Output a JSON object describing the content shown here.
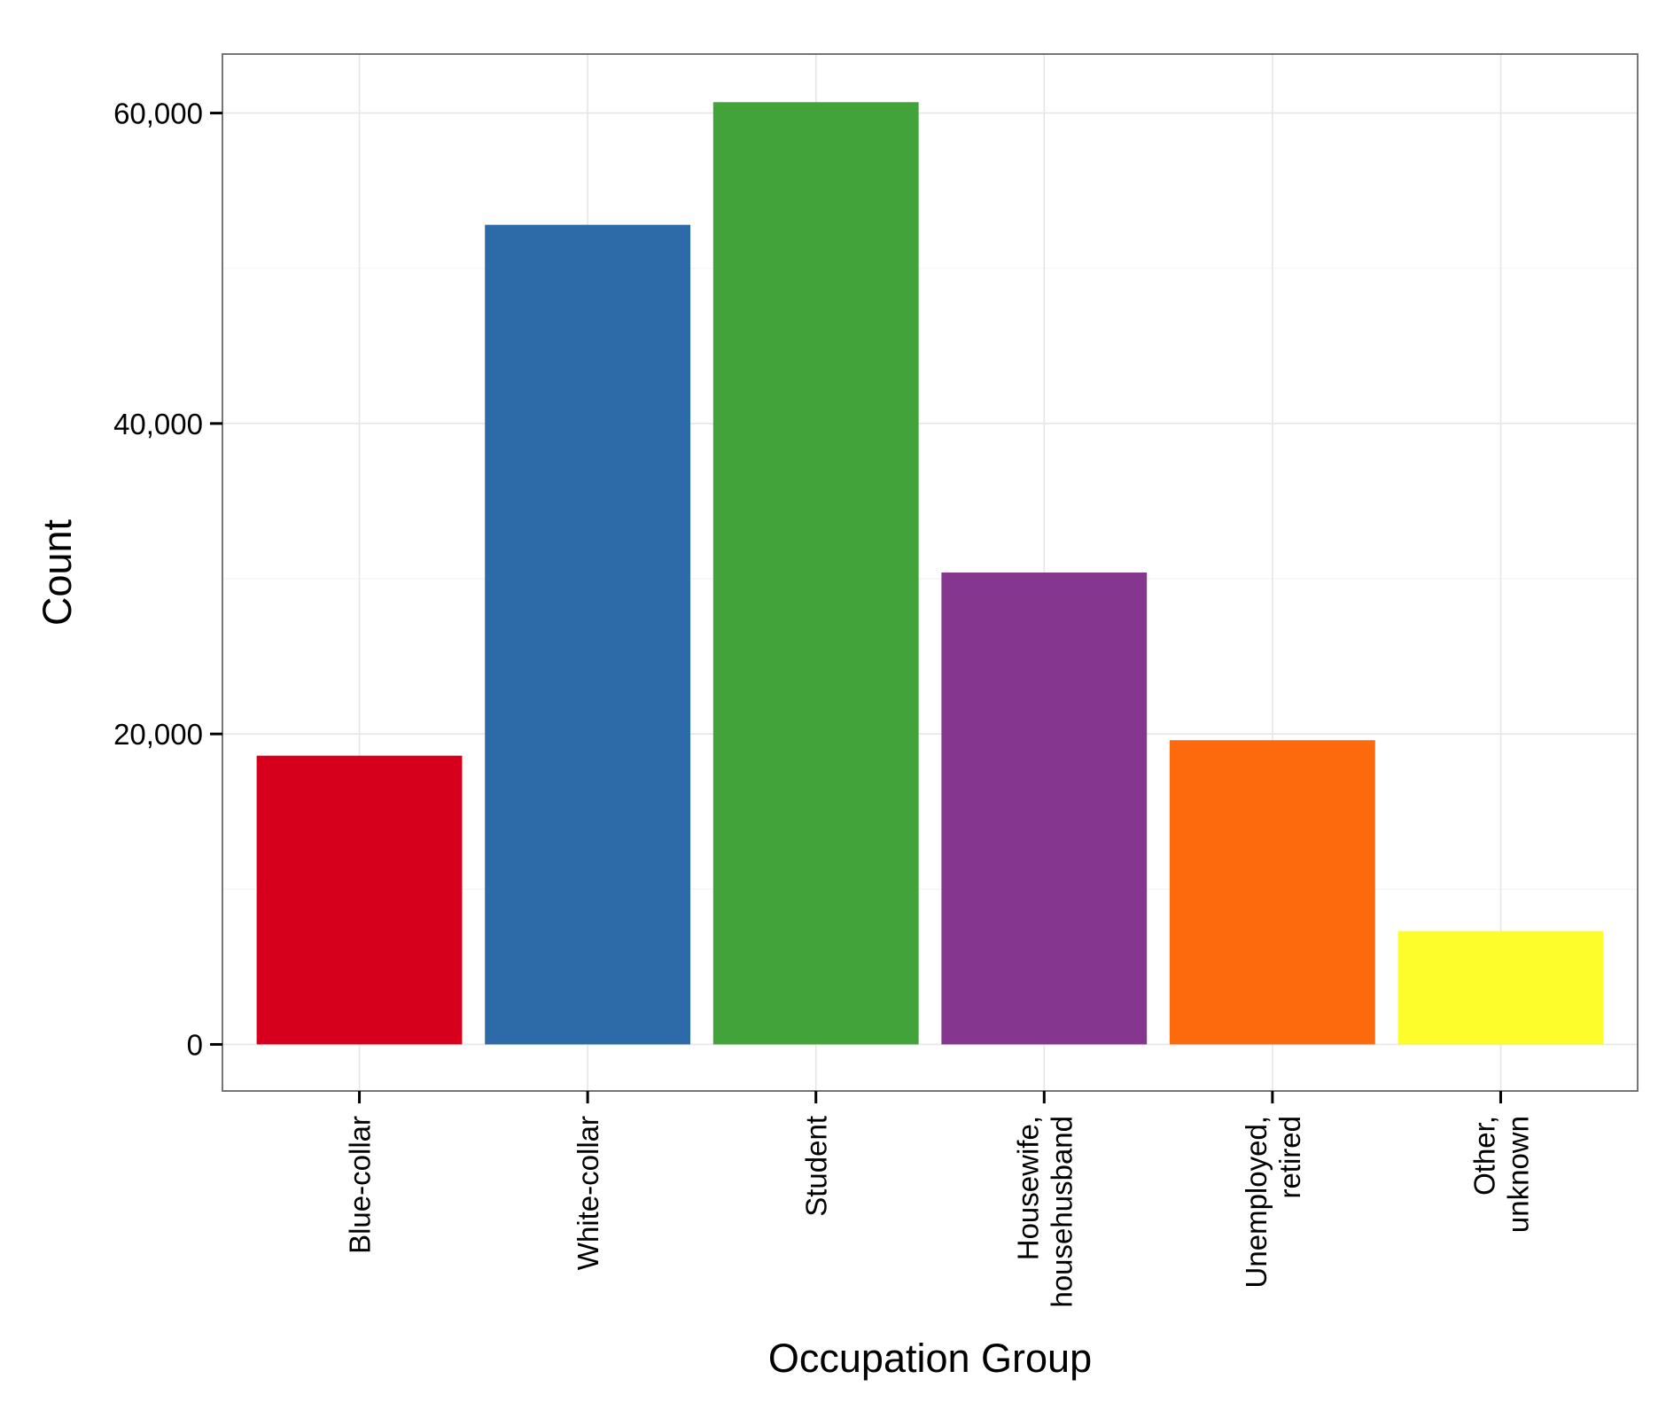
{
  "chart_data": {
    "type": "bar",
    "title": "",
    "xlabel": "Occupation Group",
    "ylabel": "Count",
    "categories": [
      [
        "Blue-collar"
      ],
      [
        "White-collar"
      ],
      [
        "Student"
      ],
      [
        "Housewife,",
        "househusband"
      ],
      [
        "Unemployed,",
        "retired"
      ],
      [
        "Other,",
        "unknown"
      ]
    ],
    "values": [
      18600,
      52800,
      60700,
      30400,
      19600,
      7300
    ],
    "colors": [
      "#D7001C",
      "#2D6AA8",
      "#42A33B",
      "#85378F",
      "#FD6A0D",
      "#FDFD2C"
    ],
    "ylim": [
      -3000,
      63800
    ],
    "y_major_ticks": [
      0,
      20000,
      40000,
      60000
    ],
    "y_tick_labels": [
      "0",
      "20,000",
      "40,000",
      "60,000"
    ],
    "y_minor_ticks": [
      10000,
      30000,
      50000
    ],
    "grid": true,
    "legend": "none"
  }
}
